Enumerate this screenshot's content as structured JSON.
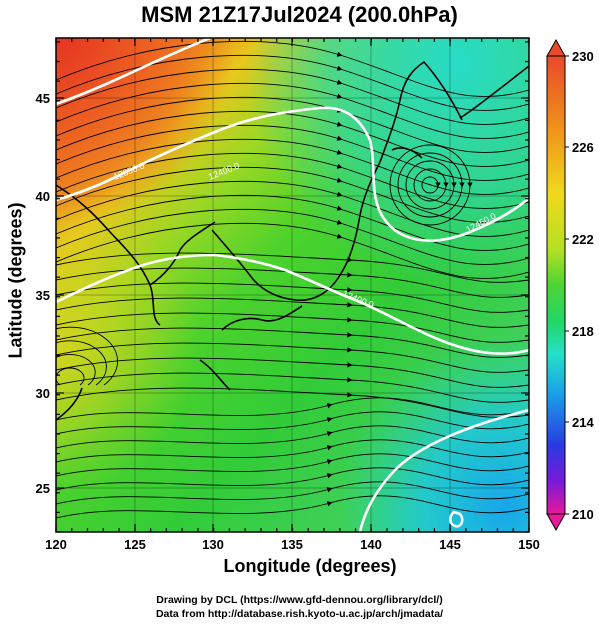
{
  "title": "MSM 21Z17Jul2024 (200.0hPa)",
  "axes": {
    "xlabel": "Longitude (degrees)",
    "ylabel": "Latitude  (degrees)",
    "xticks": [
      "120",
      "125",
      "130",
      "135",
      "140",
      "145",
      "150"
    ],
    "yticks": [
      "25",
      "30",
      "35",
      "40",
      "45"
    ],
    "xrange": [
      120,
      150
    ],
    "yrange": [
      22.4,
      47.6
    ]
  },
  "colorbar": {
    "ticks": [
      "230",
      "226",
      "222",
      "218",
      "214",
      "210"
    ],
    "range": [
      210,
      230
    ],
    "colors": [
      "#e8189a",
      "#7a1ad8",
      "#2a3ae0",
      "#1a9ee8",
      "#26e0c8",
      "#22d666",
      "#4ed434",
      "#b6e022",
      "#f0d81c",
      "#f08e1c",
      "#e84a2a"
    ]
  },
  "contours": {
    "color": "#ffffff",
    "labels": [
      "12350.0",
      "12400.0",
      "12450.0",
      "12400.0",
      "12400.0"
    ]
  },
  "credits": {
    "line1": "Drawing by DCL (https://www.gfd-dennou.org/library/dcl/)",
    "line2": "Data from http://database.rish.kyoto-u.ac.jp/arch/jmadata/"
  }
}
